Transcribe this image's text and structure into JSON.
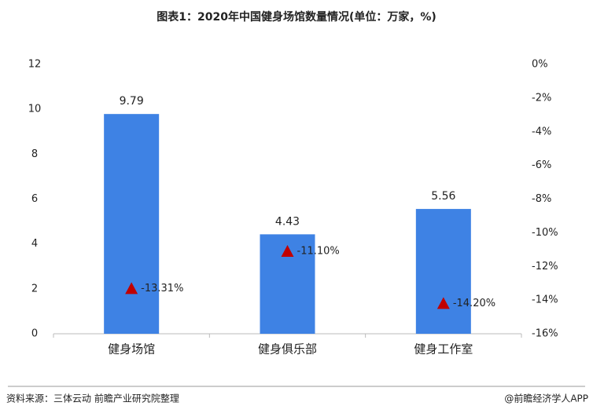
{
  "chart_data": {
    "type": "bar",
    "title": "图表1：2020年中国健身场馆数量情况(单位：万家，%)",
    "categories": [
      "健身场馆",
      "健身俱乐部",
      "健身工作室"
    ],
    "series": [
      {
        "type": "bar",
        "color": "#3e82e4",
        "values": [
          9.79,
          4.43,
          5.56
        ]
      },
      {
        "type": "scatter",
        "axis": "y2",
        "color": "#c00000",
        "marker": "triangle",
        "values": [
          -13.31,
          -11.1,
          -14.2
        ],
        "value_labels": [
          "-13.31%",
          "-11.10%",
          "-14.20%"
        ]
      }
    ],
    "ylim": [
      0,
      12
    ],
    "yticks": [
      0,
      2,
      4,
      6,
      8,
      10,
      12
    ],
    "y2lim": [
      -16,
      0
    ],
    "y2ticks": [
      {
        "value": 0,
        "label": "0%"
      },
      {
        "value": -2,
        "label": "-2%"
      },
      {
        "value": -4,
        "label": "-4%"
      },
      {
        "value": -6,
        "label": "-6%"
      },
      {
        "value": -8,
        "label": "-8%"
      },
      {
        "value": -10,
        "label": "-10%"
      },
      {
        "value": -12,
        "label": "-12%"
      },
      {
        "value": -14,
        "label": "-14%"
      },
      {
        "value": -16,
        "label": "-16%"
      }
    ],
    "source": "资料来源：三体云动 前瞻产业研究院整理",
    "credit": "@前瞻经济学人APP"
  }
}
